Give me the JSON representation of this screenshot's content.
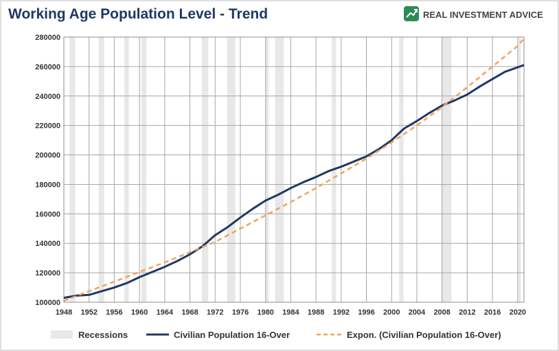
{
  "brand": {
    "name": "REAL INVESTMENT ADVICE",
    "logo_icon": "chart-arrow-up-icon",
    "logo_color": "#2e8b57"
  },
  "chart_data": {
    "type": "line",
    "title": "Working Age Population Level - Trend",
    "xlabel": "",
    "ylabel": "",
    "xlim": [
      1948,
      2021
    ],
    "ylim": [
      100000,
      280000
    ],
    "x_ticks": [
      "1948",
      "1952",
      "1956",
      "1960",
      "1964",
      "1968",
      "1972",
      "1976",
      "1980",
      "1984",
      "1988",
      "1992",
      "1996",
      "2000",
      "2004",
      "2008",
      "2012",
      "2016",
      "2020"
    ],
    "y_ticks": [
      "100000",
      "120000",
      "140000",
      "160000",
      "180000",
      "200000",
      "220000",
      "240000",
      "260000",
      "280000"
    ],
    "grid": true,
    "legend_position": "bottom",
    "recessions": {
      "name": "Recessions",
      "color": "#e8e8e8",
      "periods": [
        [
          1948.9,
          1949.8
        ],
        [
          1953.5,
          1954.4
        ],
        [
          1957.6,
          1958.3
        ],
        [
          1960.3,
          1961.1
        ],
        [
          1969.9,
          1970.9
        ],
        [
          1973.9,
          1975.2
        ],
        [
          1980.0,
          1980.5
        ],
        [
          1981.5,
          1982.9
        ],
        [
          1990.5,
          1991.2
        ],
        [
          2001.2,
          2001.9
        ],
        [
          2007.9,
          2009.5
        ],
        [
          2020.1,
          2020.5
        ]
      ]
    },
    "series": [
      {
        "name": "Civilian Population 16-Over",
        "color": "#1f3864",
        "style": "solid",
        "x": [
          1948,
          1950,
          1952,
          1954,
          1956,
          1958,
          1960,
          1962,
          1964,
          1966,
          1968,
          1970,
          1972,
          1974,
          1976,
          1978,
          1980,
          1982,
          1984,
          1986,
          1988,
          1990,
          1992,
          1994,
          1996,
          1998,
          2000,
          2001,
          2002,
          2004,
          2006,
          2008,
          2010,
          2012,
          2014,
          2016,
          2018,
          2020,
          2021
        ],
        "y": [
          103000,
          104500,
          105000,
          107500,
          110000,
          113000,
          117000,
          120500,
          124000,
          128000,
          132500,
          138000,
          145500,
          151000,
          157500,
          163500,
          169000,
          173000,
          177500,
          181500,
          185000,
          189000,
          192000,
          195500,
          199000,
          204000,
          210000,
          214000,
          218000,
          223000,
          228500,
          233500,
          237000,
          241000,
          246500,
          251500,
          256500,
          259500,
          261000
        ]
      },
      {
        "name": "Expon. (Civilian Population 16-Over)",
        "color": "#f4a15d",
        "style": "dashed",
        "x": [
          1948,
          1952,
          1956,
          1960,
          1964,
          1968,
          1972,
          1976,
          1980,
          1984,
          1988,
          1992,
          1996,
          2000,
          2004,
          2008,
          2012,
          2016,
          2020,
          2021
        ],
        "y": [
          101000,
          107500,
          114000,
          120500,
          127000,
          134000,
          141000,
          150000,
          159000,
          168000,
          177500,
          187500,
          197500,
          208500,
          220000,
          232500,
          246000,
          260000,
          274000,
          279000
        ]
      }
    ]
  }
}
